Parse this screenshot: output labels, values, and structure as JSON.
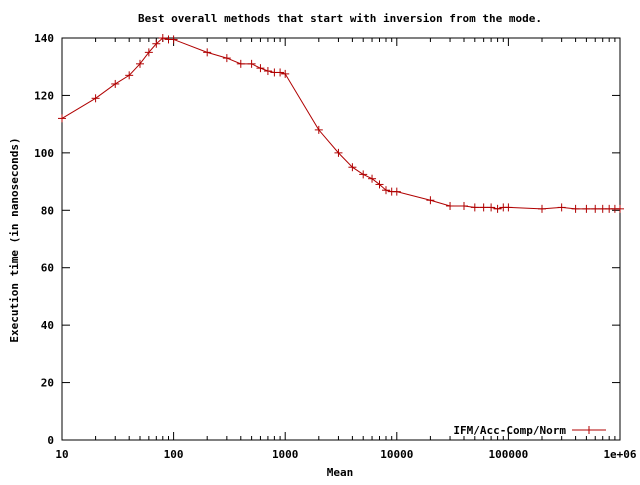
{
  "chart_data": {
    "type": "line",
    "title": "Best overall methods that start with inversion from the mode.",
    "xlabel": "Mean",
    "ylabel": "Execution time (in nanoseconds)",
    "x_scale": "log",
    "xlim": [
      10,
      1000000
    ],
    "ylim": [
      0,
      140
    ],
    "x_ticks": [
      10,
      100,
      1000,
      10000,
      100000,
      1000000
    ],
    "x_tick_labels": [
      "10",
      "100",
      "1000",
      "10000",
      "100000",
      "1e+06"
    ],
    "y_ticks": [
      0,
      20,
      40,
      60,
      80,
      100,
      120,
      140
    ],
    "y_tick_labels": [
      "0",
      "20",
      "40",
      "60",
      "80",
      "100",
      "120",
      "140"
    ],
    "grid": false,
    "legend_position": "bottom-right",
    "series": [
      {
        "name": "IFM/Acc-Comp/Norm",
        "color": "#b00000",
        "marker": "plus",
        "x": [
          10,
          20,
          30,
          40,
          50,
          60,
          70,
          80,
          90,
          100,
          200,
          300,
          400,
          500,
          600,
          700,
          800,
          900,
          1000,
          2000,
          3000,
          4000,
          5000,
          6000,
          7000,
          8000,
          9000,
          10000,
          20000,
          30000,
          40000,
          50000,
          60000,
          70000,
          80000,
          90000,
          100000,
          200000,
          300000,
          400000,
          500000,
          600000,
          700000,
          800000,
          900000,
          1000000
        ],
        "y": [
          112,
          119,
          124,
          127,
          131,
          135,
          138,
          140,
          139.5,
          139.5,
          135,
          133,
          131,
          131,
          129.5,
          128.5,
          128,
          128,
          127.5,
          108,
          100,
          95,
          92.5,
          91,
          89,
          87,
          86.5,
          86.5,
          83.5,
          81.5,
          81.5,
          81,
          81,
          81,
          80.5,
          81,
          81,
          80.5,
          81,
          80.5,
          80.5,
          80.5,
          80.5,
          80.5,
          80.5,
          80.5
        ]
      }
    ]
  }
}
